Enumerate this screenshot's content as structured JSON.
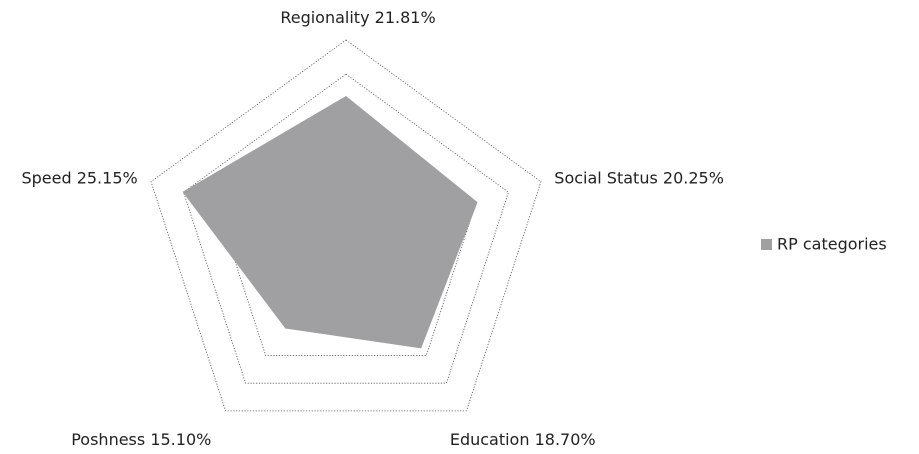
{
  "chart_data": {
    "type": "radar",
    "categories": [
      "Regionality",
      "Social Status",
      "Education",
      "Poshness",
      "Speed"
    ],
    "series": [
      {
        "name": "RP categories",
        "color": "#a0a0a3",
        "values": [
          21.81,
          20.25,
          18.7,
          15.1,
          25.15
        ],
        "value_labels": [
          "21.81%",
          "20.25%",
          "18.70%",
          "15.10%",
          "25.15%"
        ]
      }
    ],
    "ylim": [
      0,
      30
    ],
    "yticks": [
      0,
      5,
      10,
      15,
      20,
      25,
      30
    ],
    "grid": true,
    "legend": "right"
  }
}
